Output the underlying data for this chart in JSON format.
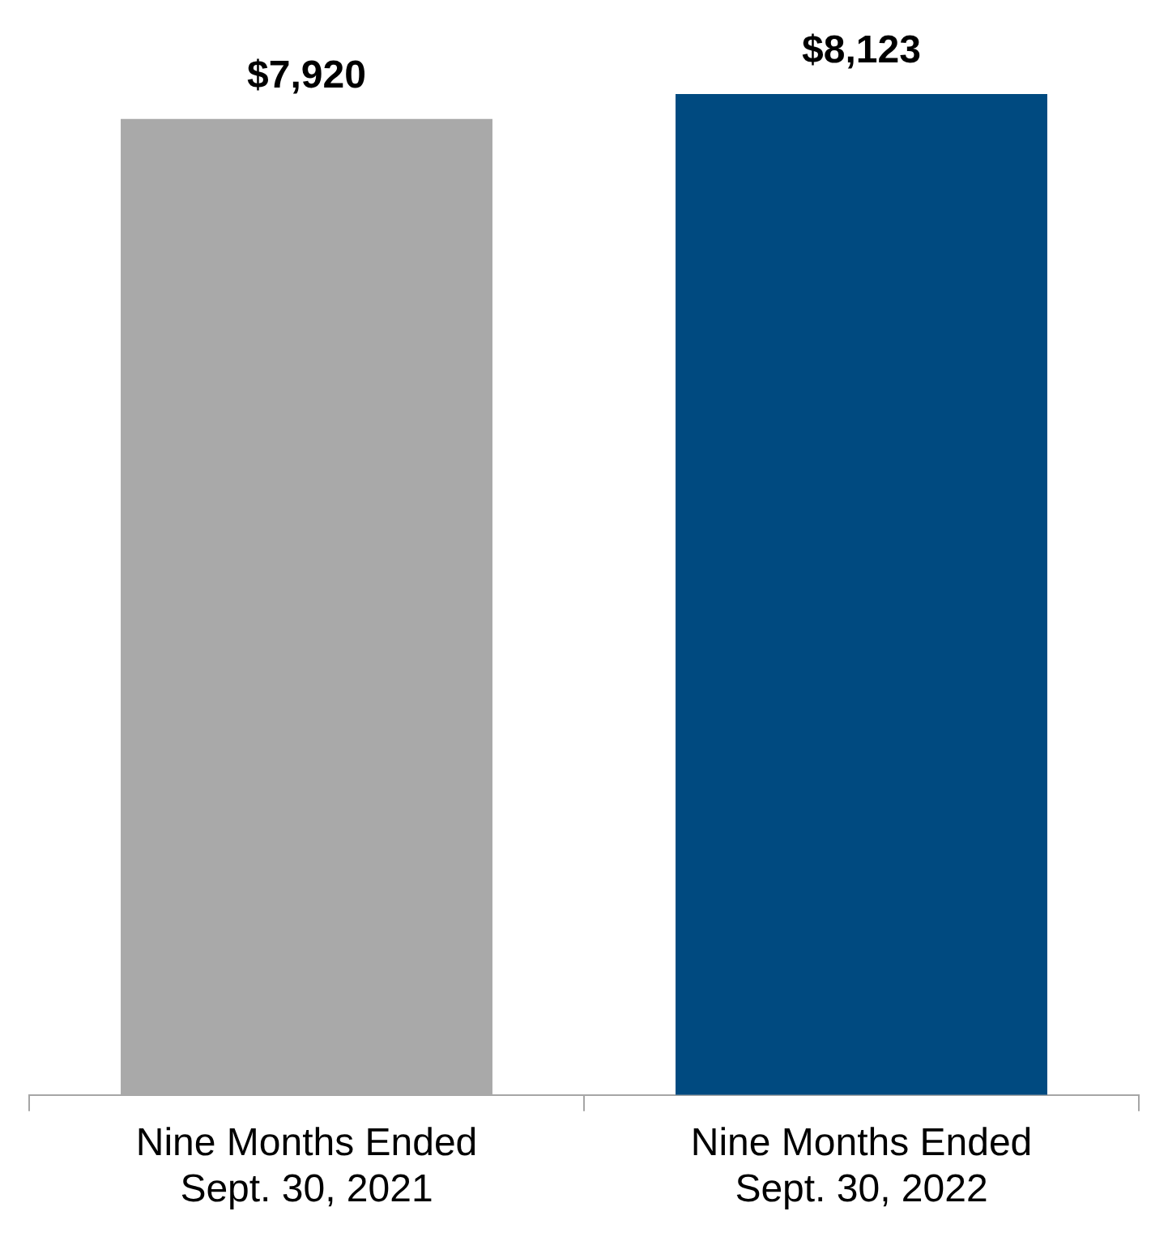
{
  "chart_data": {
    "type": "bar",
    "categories": [
      "Nine Months Ended Sept. 30, 2021",
      "Nine Months Ended Sept. 30, 2022"
    ],
    "values": [
      7920,
      8123
    ],
    "colors": [
      "#a9a9a9",
      "#004a80"
    ],
    "value_labels": [
      "$7,920",
      "$8,123"
    ],
    "grid": false,
    "legend": false
  }
}
